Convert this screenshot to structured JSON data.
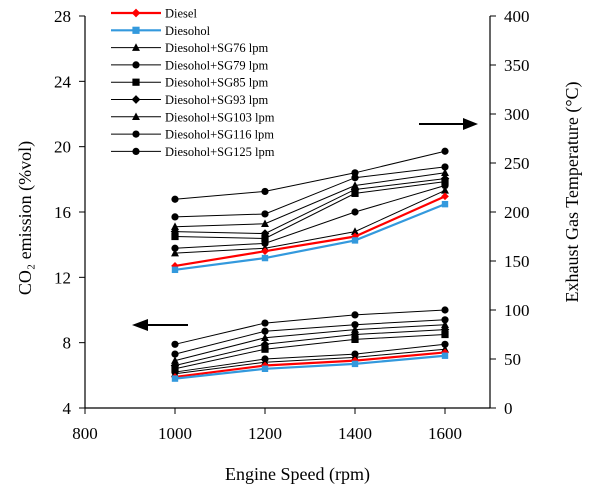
{
  "chart_data": {
    "type": "line",
    "xlabel": "Engine  Speed (rpm)",
    "ylabel_left": "CO₂ emission (%vol)",
    "ylabel_right": "Exhaust Gas Temperature  (°C)",
    "x_ticks": [
      800,
      1000,
      1200,
      1400,
      1600
    ],
    "xlim": [
      800,
      1700
    ],
    "y_left_ticks": [
      4,
      8,
      12,
      16,
      20,
      24,
      28
    ],
    "y_left_lim": [
      4,
      28
    ],
    "y_right_ticks": [
      0,
      50,
      100,
      150,
      200,
      250,
      300,
      350,
      400
    ],
    "y_right_lim": [
      0,
      400
    ],
    "x": [
      1000,
      1200,
      1400,
      1600
    ],
    "grid": false,
    "legend_position": "top-left",
    "colors": {
      "diesel": "#ff0000",
      "diesohol": "#3399dd",
      "blends": "#000000"
    },
    "series": [
      {
        "name": "Diesel",
        "co2": [
          5.9,
          6.6,
          6.9,
          7.4
        ],
        "egt": [
          145,
          160,
          175,
          216
        ],
        "color": "#ff0000",
        "marker": "diamond"
      },
      {
        "name": "Diesohol",
        "co2": [
          5.8,
          6.4,
          6.7,
          7.2
        ],
        "egt": [
          141,
          153,
          171,
          208
        ],
        "color": "#3399dd",
        "marker": "square"
      },
      {
        "name": "Diesohol+SG76 lpm",
        "co2": [
          6.1,
          6.8,
          7.1,
          7.6
        ],
        "egt": [
          158,
          163,
          180,
          222
        ],
        "color": "#000000",
        "marker": "triangle"
      },
      {
        "name": "Diesohol+SG79 lpm",
        "co2": [
          6.2,
          7.0,
          7.3,
          7.9
        ],
        "egt": [
          163,
          168,
          200,
          227
        ],
        "color": "#000000",
        "marker": "circle"
      },
      {
        "name": "Diesohol+SG85 lpm",
        "co2": [
          6.4,
          7.6,
          8.2,
          8.5
        ],
        "egt": [
          175,
          173,
          219,
          231
        ],
        "color": "#000000",
        "marker": "square"
      },
      {
        "name": "Diesohol+SG93 lpm",
        "co2": [
          6.6,
          7.9,
          8.5,
          8.8
        ],
        "egt": [
          180,
          178,
          223,
          234
        ],
        "color": "#000000",
        "marker": "diamond"
      },
      {
        "name": "Diesohol+SG103 lpm",
        "co2": [
          6.9,
          8.3,
          8.8,
          9.1
        ],
        "egt": [
          185,
          188,
          227,
          240
        ],
        "color": "#000000",
        "marker": "triangle"
      },
      {
        "name": "Diesohol+SG116 lpm",
        "co2": [
          7.3,
          8.7,
          9.1,
          9.4
        ],
        "egt": [
          195,
          198,
          235,
          246
        ],
        "color": "#000000",
        "marker": "circle"
      },
      {
        "name": "Diesohol+SG125 lpm",
        "co2": [
          7.9,
          9.2,
          9.7,
          10.0
        ],
        "egt": [
          213,
          221,
          240,
          262
        ],
        "color": "#000000",
        "marker": "circle"
      }
    ]
  }
}
